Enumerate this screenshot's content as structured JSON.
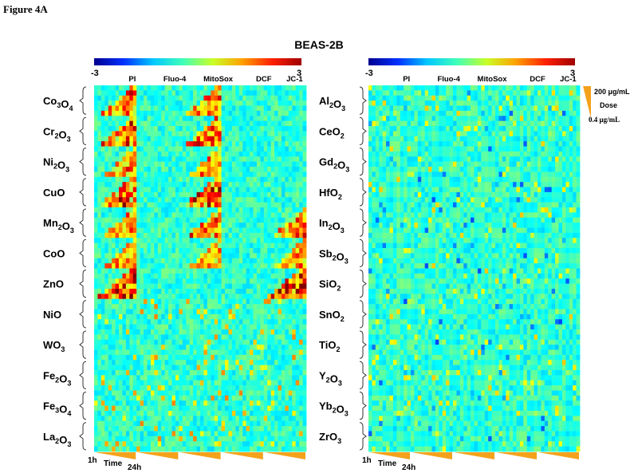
{
  "figure_label": "Figure 4A",
  "title": "BEAS-2B",
  "colorbar": {
    "min_label": "-3",
    "max_label": "3",
    "colors": [
      "#00008f",
      "#0030ff",
      "#00c8ff",
      "#40ffb8",
      "#c8ff28",
      "#ffa000",
      "#ff2000",
      "#a00000"
    ]
  },
  "assays": [
    "PI",
    "Fluo-4",
    "MitoSox",
    "DCF",
    "JC-1"
  ],
  "time_axis": {
    "start": "1h",
    "label": "Time",
    "end": "24h"
  },
  "dose_legend": {
    "high": "200 μg/mL",
    "label": "Dose",
    "low": "0.4 μg/mL"
  },
  "wedge_color": "#f4a21c",
  "panels": [
    {
      "id": "left",
      "labels": [
        {
          "base": "Co",
          "sub1": "3",
          "mid": "O",
          "sub2": "4"
        },
        {
          "base": "Cr",
          "sub1": "2",
          "mid": "O",
          "sub2": "3"
        },
        {
          "base": "Ni",
          "sub1": "2",
          "mid": "O",
          "sub2": "3"
        },
        {
          "base": "CuO",
          "sub1": "",
          "mid": "",
          "sub2": ""
        },
        {
          "base": "Mn",
          "sub1": "2",
          "mid": "O",
          "sub2": "3"
        },
        {
          "base": "CoO",
          "sub1": "",
          "mid": "",
          "sub2": ""
        },
        {
          "base": "ZnO",
          "sub1": "",
          "mid": "",
          "sub2": ""
        },
        {
          "base": "NiO",
          "sub1": "",
          "mid": "",
          "sub2": ""
        },
        {
          "base": "WO",
          "sub1": "",
          "mid": "",
          "sub2": "3"
        },
        {
          "base": "Fe",
          "sub1": "2",
          "mid": "O",
          "sub2": "3"
        },
        {
          "base": "Fe",
          "sub1": "3",
          "mid": "O",
          "sub2": "4"
        },
        {
          "base": "La",
          "sub1": "2",
          "mid": "O",
          "sub2": "3"
        }
      ]
    },
    {
      "id": "right",
      "labels": [
        {
          "base": "Al",
          "sub1": "2",
          "mid": "O",
          "sub2": "3"
        },
        {
          "base": "CeO",
          "sub1": "",
          "mid": "",
          "sub2": "2"
        },
        {
          "base": "Gd",
          "sub1": "2",
          "mid": "O",
          "sub2": "3"
        },
        {
          "base": "HfO",
          "sub1": "",
          "mid": "",
          "sub2": "2"
        },
        {
          "base": "In",
          "sub1": "2",
          "mid": "O",
          "sub2": "3"
        },
        {
          "base": "Sb",
          "sub1": "2",
          "mid": "O",
          "sub2": "3"
        },
        {
          "base": "SiO",
          "sub1": "",
          "mid": "",
          "sub2": "2"
        },
        {
          "base": "SnO",
          "sub1": "",
          "mid": "",
          "sub2": "2"
        },
        {
          "base": "TiO",
          "sub1": "",
          "mid": "",
          "sub2": "2"
        },
        {
          "base": "Y",
          "sub1": "2",
          "mid": "O",
          "sub2": "3"
        },
        {
          "base": "Yb",
          "sub1": "2",
          "mid": "O",
          "sub2": "3"
        },
        {
          "base": "ZrO",
          "sub1": "",
          "mid": "",
          "sub2": "3"
        }
      ]
    }
  ]
}
